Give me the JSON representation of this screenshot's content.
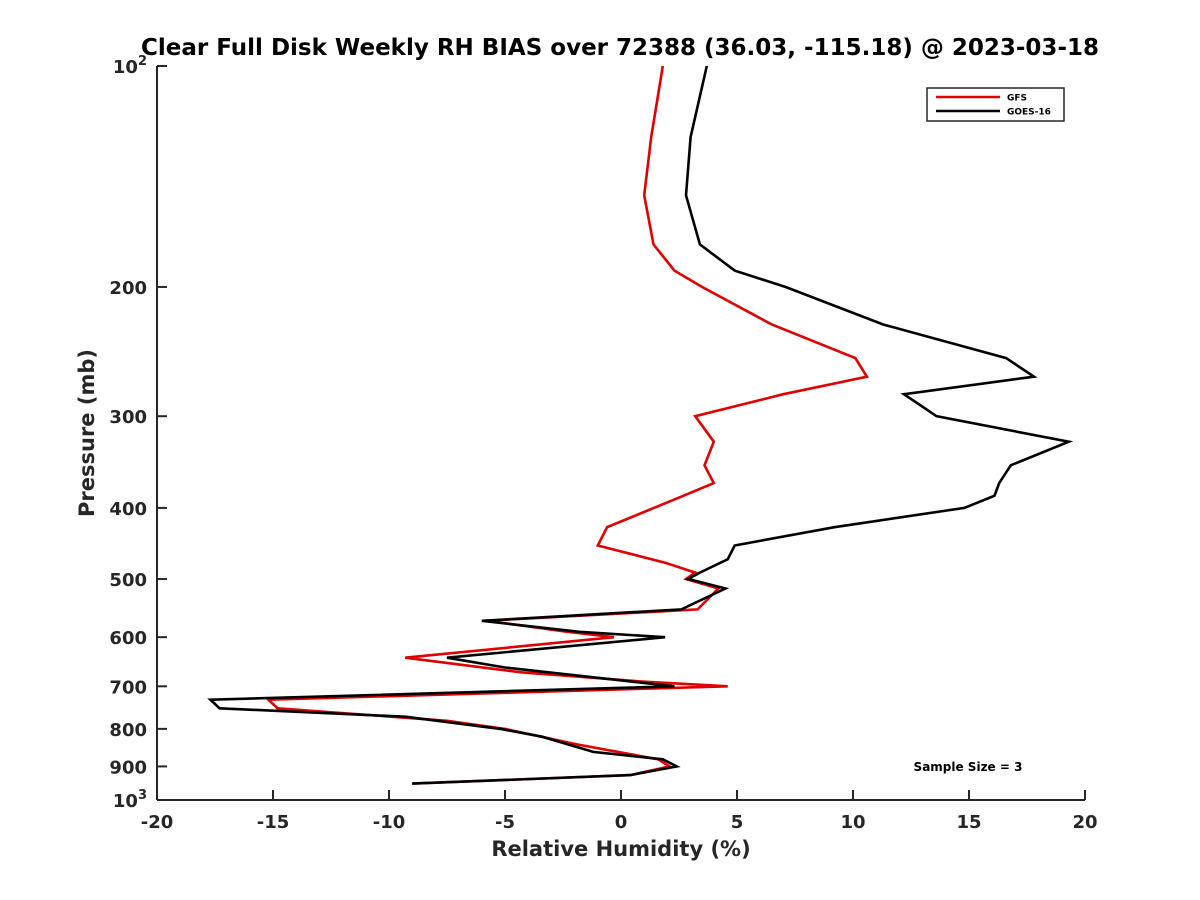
{
  "chart_data": {
    "type": "line",
    "title": "Clear Full Disk Weekly RH BIAS over 72388 (36.03, -115.18) @ 2023-03-18",
    "xlabel": "Relative Humidity (%)",
    "ylabel": "Pressure (mb)",
    "xlim": [
      -20,
      20
    ],
    "ylim": [
      100,
      1000
    ],
    "y_scale": "log",
    "y_reversed": true,
    "grid": false,
    "legend_position": "top-right",
    "x_ticks": [
      -20,
      -15,
      -10,
      -5,
      0,
      5,
      10,
      15,
      20
    ],
    "x_tick_labels": [
      "-20",
      "-15",
      "-10",
      "-5",
      "0",
      "5",
      "10",
      "15",
      "20"
    ],
    "y_ticks": [
      100,
      200,
      300,
      400,
      500,
      600,
      700,
      800,
      900,
      1000
    ],
    "y_tick_labels": [
      {
        "base": "10",
        "exp": "2"
      },
      {
        "base": "200",
        "exp": ""
      },
      {
        "base": "300",
        "exp": ""
      },
      {
        "base": "400",
        "exp": ""
      },
      {
        "base": "500",
        "exp": ""
      },
      {
        "base": "600",
        "exp": ""
      },
      {
        "base": "700",
        "exp": ""
      },
      {
        "base": "800",
        "exp": ""
      },
      {
        "base": "900",
        "exp": ""
      },
      {
        "base": "10",
        "exp": "3"
      }
    ],
    "annotation": "Sample Size = 3",
    "series": [
      {
        "name": "GFS",
        "color": "#e00000",
        "points": [
          [
            1.8,
            100
          ],
          [
            1.3,
            125
          ],
          [
            1.0,
            150
          ],
          [
            1.4,
            175
          ],
          [
            2.3,
            190
          ],
          [
            3.5,
            200
          ],
          [
            6.5,
            225
          ],
          [
            10.1,
            250
          ],
          [
            10.6,
            265
          ],
          [
            7.0,
            280
          ],
          [
            3.2,
            300
          ],
          [
            4.0,
            325
          ],
          [
            3.6,
            350
          ],
          [
            4.0,
            370
          ],
          [
            2.7,
            385
          ],
          [
            -0.6,
            425
          ],
          [
            -1.0,
            450
          ],
          [
            1.9,
            475
          ],
          [
            3.2,
            490
          ],
          [
            2.8,
            500
          ],
          [
            4.2,
            515
          ],
          [
            3.3,
            550
          ],
          [
            -5.8,
            570
          ],
          [
            -2.3,
            590
          ],
          [
            -0.3,
            600
          ],
          [
            -9.3,
            640
          ],
          [
            -4.3,
            670
          ],
          [
            1.0,
            690
          ],
          [
            4.6,
            700
          ],
          [
            -15.2,
            730
          ],
          [
            -14.8,
            750
          ],
          [
            -7.5,
            780
          ],
          [
            -5.0,
            800
          ],
          [
            -1.9,
            840
          ],
          [
            1.6,
            880
          ],
          [
            2.1,
            900
          ],
          [
            0.4,
            925
          ],
          [
            -9.0,
            950
          ]
        ]
      },
      {
        "name": "GOES-16",
        "color": "#000000",
        "points": [
          [
            3.7,
            100
          ],
          [
            3.0,
            125
          ],
          [
            2.8,
            150
          ],
          [
            3.4,
            175
          ],
          [
            4.9,
            190
          ],
          [
            7.1,
            200
          ],
          [
            11.3,
            225
          ],
          [
            16.6,
            250
          ],
          [
            17.8,
            265
          ],
          [
            12.2,
            280
          ],
          [
            13.6,
            300
          ],
          [
            19.3,
            325
          ],
          [
            16.8,
            350
          ],
          [
            16.3,
            370
          ],
          [
            16.1,
            385
          ],
          [
            14.8,
            400
          ],
          [
            9.2,
            425
          ],
          [
            4.9,
            450
          ],
          [
            4.6,
            470
          ],
          [
            3.4,
            490
          ],
          [
            2.9,
            500
          ],
          [
            4.5,
            515
          ],
          [
            2.6,
            550
          ],
          [
            -6.0,
            570
          ],
          [
            -1.8,
            590
          ],
          [
            1.9,
            600
          ],
          [
            -7.5,
            640
          ],
          [
            -5.0,
            660
          ],
          [
            2.3,
            700
          ],
          [
            -17.7,
            730
          ],
          [
            -17.3,
            750
          ],
          [
            -9.3,
            770
          ],
          [
            -5.2,
            800
          ],
          [
            -3.4,
            820
          ],
          [
            -1.2,
            860
          ],
          [
            1.8,
            880
          ],
          [
            2.4,
            900
          ],
          [
            0.4,
            925
          ],
          [
            -9.0,
            950
          ]
        ]
      }
    ]
  }
}
